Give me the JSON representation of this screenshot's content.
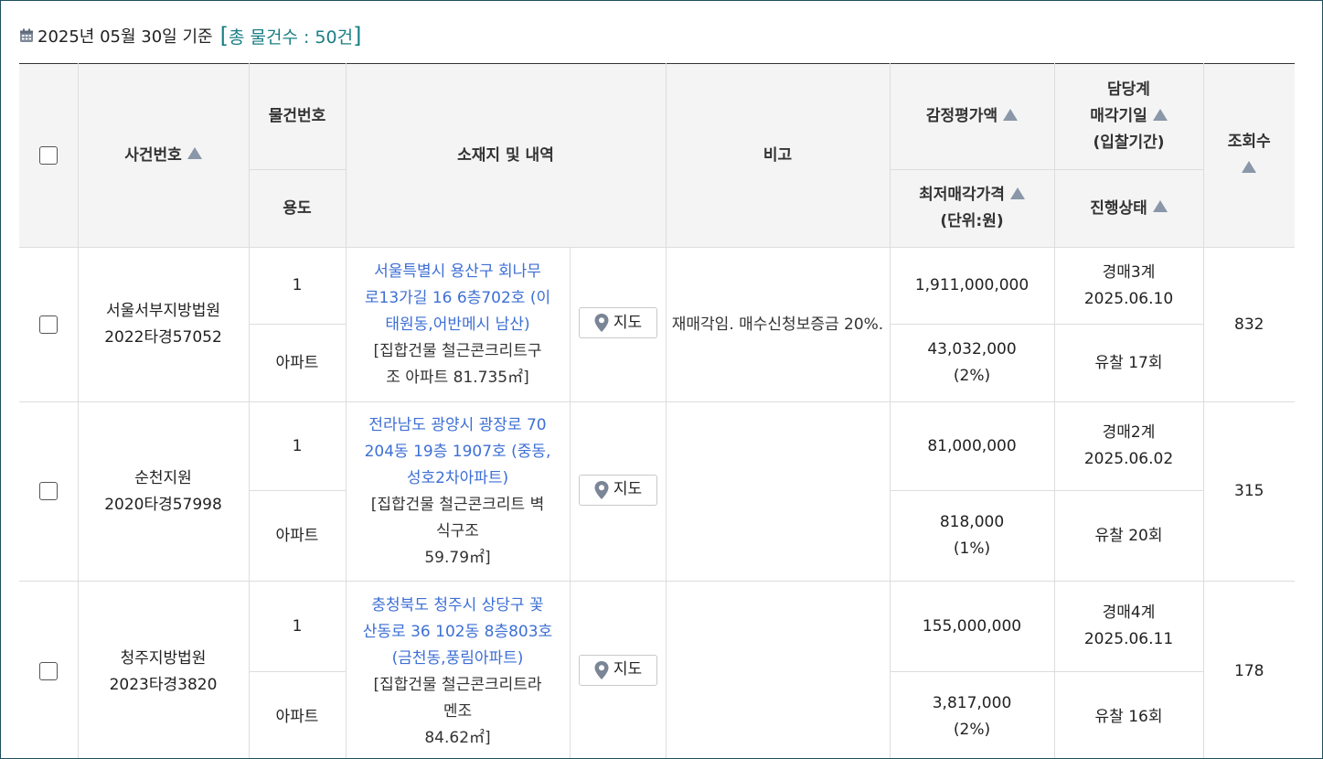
{
  "summary": {
    "base_date": "2025년 05월 30일 기준",
    "open_bracket": "[",
    "count_label": "총 물건수 : 50건",
    "close_bracket": "]"
  },
  "header": {
    "case_number": "사건번호",
    "item_number": "물건번호",
    "usage": "용도",
    "location": "소재지 및 내역",
    "note": "비고",
    "appraisal": "감정평가액",
    "min_price_line1": "최저매각가격",
    "min_price_line2": "(단위:원)",
    "dept_line1": "담당계",
    "dept_line2": "매각기일",
    "dept_line3": "(입찰기간)",
    "status": "진행상태",
    "views": "조회수"
  },
  "rows": [
    {
      "court": "서울서부지방법원",
      "case_no": "2022타경57052",
      "item_no": "1",
      "usage": "아파트",
      "address_lines": [
        "서울특별시 용산구 회나무",
        "로13가길 16 6층702호 (이",
        "태원동,어반메시 남산)"
      ],
      "desc_lines": [
        "[집합건물 철근콘크리트구",
        "조 아파트 81.735㎡]"
      ],
      "map_label": "지도",
      "note": "재매각임. 매수신청보증금 20%.",
      "appraisal": "1,911,000,000",
      "min_price": "43,032,000",
      "min_pct": "(2%)",
      "dept": "경매3계",
      "sale_date": "2025.06.10",
      "status": "유찰 17회",
      "views": "832"
    },
    {
      "court": "순천지원",
      "case_no": "2020타경57998",
      "item_no": "1",
      "usage": "아파트",
      "address_lines": [
        "전라남도 광양시 광장로 70",
        "204동 19층 1907호 (중동,",
        "성호2차아파트)"
      ],
      "desc_lines": [
        "[집합건물 철근콘크리트 벽",
        "식구조",
        "59.79㎡]"
      ],
      "map_label": "지도",
      "note": "",
      "appraisal": "81,000,000",
      "min_price": "818,000",
      "min_pct": "(1%)",
      "dept": "경매2계",
      "sale_date": "2025.06.02",
      "status": "유찰 20회",
      "views": "315"
    },
    {
      "court": "청주지방법원",
      "case_no": "2023타경3820",
      "item_no": "1",
      "usage": "아파트",
      "address_lines": [
        "충청북도 청주시 상당구 꽃",
        "산동로 36 102동 8층803호",
        "(금천동,풍림아파트)"
      ],
      "desc_lines": [
        "[집합건물 철근콘크리트라",
        "멘조",
        "84.62㎡]"
      ],
      "map_label": "지도",
      "note": "",
      "appraisal": "155,000,000",
      "min_price": "3,817,000",
      "min_pct": "(2%)",
      "dept": "경매4계",
      "sale_date": "2025.06.11",
      "status": "유찰 16회",
      "views": "178"
    }
  ]
}
